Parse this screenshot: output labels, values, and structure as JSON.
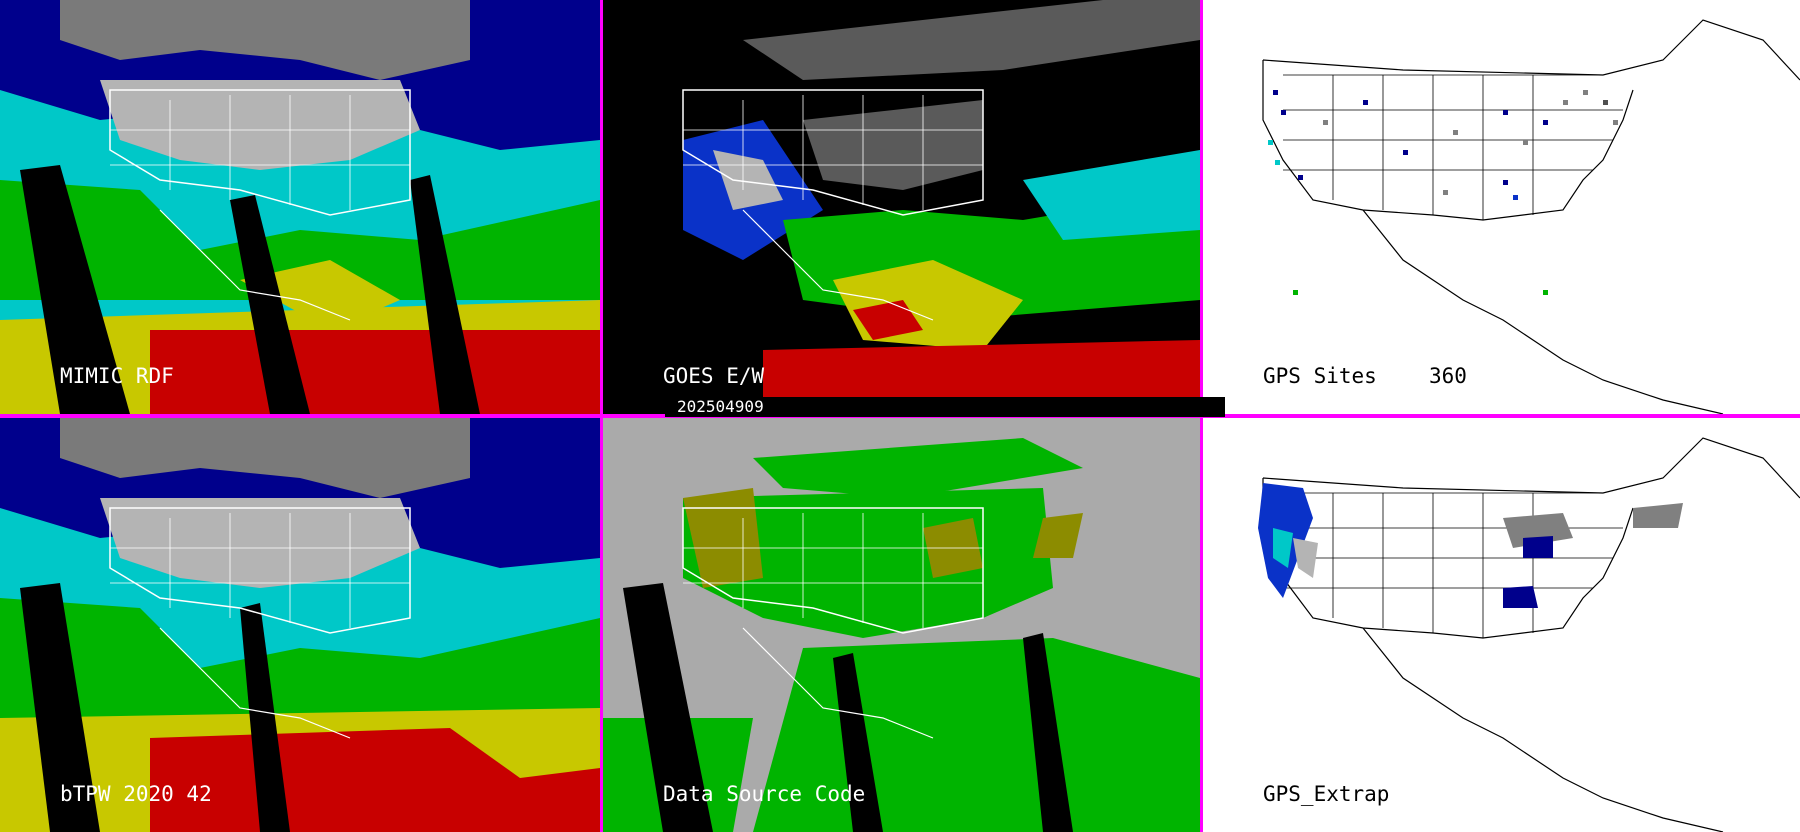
{
  "panels": {
    "mimic_rdf": {
      "label": "MIMIC RDF"
    },
    "goes": {
      "label": "GOES E/W"
    },
    "gps_sites": {
      "label": "GPS Sites",
      "count": "360"
    },
    "btpw": {
      "label": "bTPW 2020 42"
    },
    "data_source": {
      "label": "Data Source Code"
    },
    "gps_extrap": {
      "label": "GPS_Extrap"
    }
  },
  "timestamp": "202504909",
  "colors": {
    "separator": "#ff00ff",
    "tpw_scale": [
      "#000000",
      "#5a5a5a",
      "#b4b4b4",
      "#00008c",
      "#0a32c8",
      "#00c8c8",
      "#00b400",
      "#c8c800",
      "#c80000"
    ],
    "source_green": "#00b400",
    "source_olive": "#8c8c00",
    "source_gray": "#aaaaaa"
  }
}
